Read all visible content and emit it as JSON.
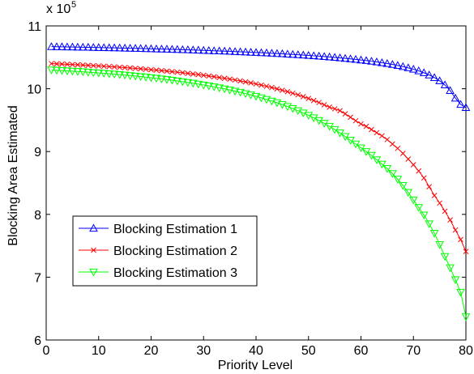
{
  "chart_data": {
    "type": "line",
    "xlabel": "Priority Level",
    "ylabel": "Blocking Area Estimated",
    "y_multiplier_label": "x 10",
    "y_multiplier_exponent": "5",
    "xlim": [
      0,
      80
    ],
    "ylim": [
      6,
      11
    ],
    "xticks": [
      "0",
      "10",
      "20",
      "30",
      "40",
      "50",
      "60",
      "70",
      "80"
    ],
    "yticks": [
      "6",
      "7",
      "8",
      "9",
      "10",
      "11"
    ],
    "grid": false,
    "legend_position": "lower-left",
    "x": [
      1,
      2,
      3,
      4,
      5,
      6,
      7,
      8,
      9,
      10,
      11,
      12,
      13,
      14,
      15,
      16,
      17,
      18,
      19,
      20,
      21,
      22,
      23,
      24,
      25,
      26,
      27,
      28,
      29,
      30,
      31,
      32,
      33,
      34,
      35,
      36,
      37,
      38,
      39,
      40,
      41,
      42,
      43,
      44,
      45,
      46,
      47,
      48,
      49,
      50,
      51,
      52,
      53,
      54,
      55,
      56,
      57,
      58,
      59,
      60,
      61,
      62,
      63,
      64,
      65,
      66,
      67,
      68,
      69,
      70,
      71,
      72,
      73,
      74,
      75,
      76,
      77,
      78,
      79,
      80
    ],
    "series": [
      {
        "name": "Blocking Estimation 1",
        "color": "#0000ff",
        "marker": "triangle-up",
        "values": [
          10.67,
          10.668,
          10.667,
          10.665,
          10.664,
          10.662,
          10.66,
          10.659,
          10.657,
          10.655,
          10.653,
          10.651,
          10.65,
          10.648,
          10.646,
          10.644,
          10.642,
          10.64,
          10.638,
          10.635,
          10.633,
          10.631,
          10.629,
          10.626,
          10.624,
          10.621,
          10.619,
          10.616,
          10.613,
          10.61,
          10.607,
          10.604,
          10.601,
          10.598,
          10.595,
          10.591,
          10.588,
          10.584,
          10.58,
          10.577,
          10.573,
          10.569,
          10.564,
          10.56,
          10.556,
          10.551,
          10.546,
          10.541,
          10.535,
          10.53,
          10.524,
          10.518,
          10.512,
          10.505,
          10.498,
          10.491,
          10.483,
          10.475,
          10.467,
          10.457,
          10.448,
          10.437,
          10.426,
          10.414,
          10.401,
          10.386,
          10.37,
          10.352,
          10.332,
          10.31,
          10.284,
          10.254,
          10.219,
          10.177,
          10.125,
          10.06,
          9.97,
          9.85,
          9.75,
          9.7
        ]
      },
      {
        "name": "Blocking Estimation 2",
        "color": "#ff0000",
        "marker": "x",
        "values": [
          10.4,
          10.396,
          10.393,
          10.389,
          10.385,
          10.381,
          10.377,
          10.372,
          10.368,
          10.363,
          10.358,
          10.353,
          10.347,
          10.342,
          10.336,
          10.33,
          10.324,
          10.317,
          10.31,
          10.303,
          10.296,
          10.288,
          10.28,
          10.272,
          10.263,
          10.254,
          10.245,
          10.235,
          10.225,
          10.214,
          10.203,
          10.191,
          10.179,
          10.166,
          10.153,
          10.139,
          10.124,
          10.109,
          10.093,
          10.076,
          10.058,
          10.039,
          10.019,
          9.998,
          9.976,
          9.953,
          9.928,
          9.902,
          9.874,
          9.845,
          9.813,
          9.78,
          9.744,
          9.706,
          9.68,
          9.65,
          9.6,
          9.545,
          9.49,
          9.44,
          9.4,
          9.35,
          9.3,
          9.25,
          9.19,
          9.12,
          9.05,
          8.97,
          8.88,
          8.79,
          8.69,
          8.58,
          8.44,
          8.3,
          8.18,
          8.05,
          7.91,
          7.75,
          7.6,
          7.41
        ]
      },
      {
        "name": "Blocking Estimation 3",
        "color": "#00ff00",
        "marker": "triangle-down",
        "values": [
          10.3,
          10.295,
          10.29,
          10.285,
          10.28,
          10.275,
          10.27,
          10.264,
          10.258,
          10.252,
          10.246,
          10.239,
          10.233,
          10.226,
          10.218,
          10.21,
          10.202,
          10.194,
          10.185,
          10.176,
          10.167,
          10.157,
          10.146,
          10.136,
          10.124,
          10.113,
          10.1,
          10.088,
          10.074,
          10.06,
          10.046,
          10.031,
          10.015,
          9.998,
          9.98,
          9.962,
          9.943,
          9.922,
          9.901,
          9.879,
          9.855,
          9.83,
          9.804,
          9.777,
          9.748,
          9.717,
          9.685,
          9.651,
          9.615,
          9.577,
          9.537,
          9.495,
          9.45,
          9.402,
          9.351,
          9.297,
          9.24,
          9.18,
          9.12,
          9.06,
          9.0,
          8.94,
          8.87,
          8.8,
          8.73,
          8.65,
          8.56,
          8.46,
          8.35,
          8.23,
          8.11,
          7.99,
          7.85,
          7.7,
          7.52,
          7.33,
          7.15,
          6.96,
          6.76,
          6.37
        ]
      }
    ]
  }
}
